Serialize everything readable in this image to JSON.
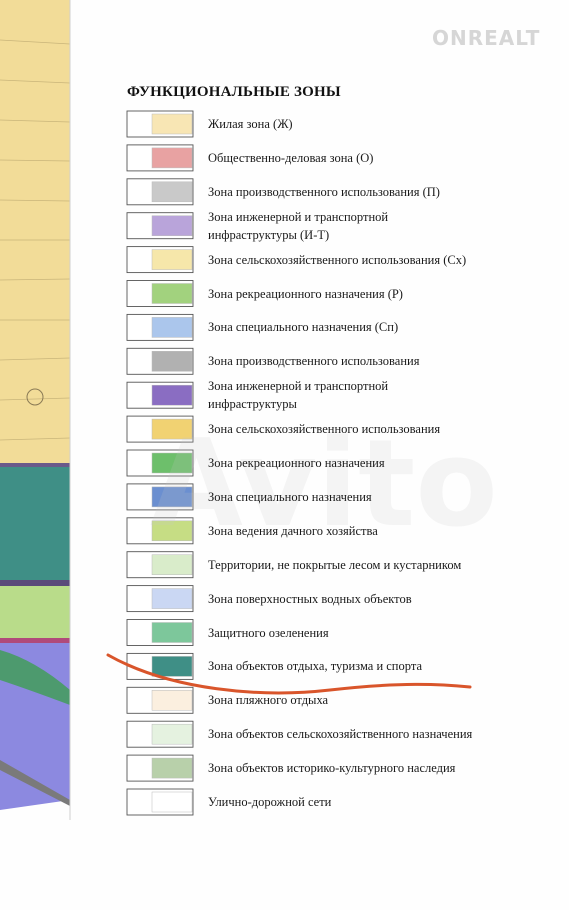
{
  "header": {
    "title": "ФУНКЦИОНАЛЬНЫЕ ЗОНЫ"
  },
  "watermarks": {
    "brand": "ONREALT",
    "avito": "Avito"
  },
  "legend": [
    {
      "lines": [
        "Жилая зона (Ж)"
      ],
      "color": "#f8e6b4"
    },
    {
      "lines": [
        "Общественно-деловая зона (О)"
      ],
      "color": "#e8a2a2"
    },
    {
      "lines": [
        "Зона производственного использования (П)"
      ],
      "color": "#c9c9c9"
    },
    {
      "lines": [
        "Зона инженерной и транспортной",
        "инфраструктуры (И-Т)"
      ],
      "color": "#b9a4da"
    },
    {
      "lines": [
        "Зона сельскохозяйственного использования (Сх)"
      ],
      "color": "#f6e7aa"
    },
    {
      "lines": [
        "Зона рекреационного назначения (Р)"
      ],
      "color": "#a2d27e"
    },
    {
      "lines": [
        "Зона специального назначения (Сп)"
      ],
      "color": "#abc6ec"
    },
    {
      "lines": [
        "Зона производственного использования"
      ],
      "color": "#b1b1b1"
    },
    {
      "lines": [
        "Зона инженерной и транспортной",
        "инфраструктуры"
      ],
      "color": "#8a6dc2"
    },
    {
      "lines": [
        "Зона сельскохозяйственного использования"
      ],
      "color": "#f1d272"
    },
    {
      "lines": [
        "Зона рекреационного назначения"
      ],
      "color": "#6dbf6b"
    },
    {
      "lines": [
        "Зона специального назначения"
      ],
      "color": "#6b8fd0"
    },
    {
      "lines": [
        "Зона ведения дачного хозяйства"
      ],
      "color": "#c6dd84"
    },
    {
      "lines": [
        "Территории, не покрытые лесом и кустарником"
      ],
      "color": "#d9ecca"
    },
    {
      "lines": [
        "Зона поверхностных водных объектов"
      ],
      "color": "#cad7f3"
    },
    {
      "lines": [
        "Защитного озеленения"
      ],
      "color": "#7dc79b"
    },
    {
      "lines": [
        "Зона объектов отдыха, туризма и спорта"
      ],
      "color": "#3f8f86"
    },
    {
      "lines": [
        "Зона пляжного отдыха"
      ],
      "color": "#fbefdf"
    },
    {
      "lines": [
        "Зона объектов сельскохозяйственного назначения"
      ],
      "color": "#e5f2e0"
    },
    {
      "lines": [
        "Зона объектов историко-культурного наследия"
      ],
      "color": "#b8d0aa"
    },
    {
      "lines": [
        "Улично-дорожной сети"
      ],
      "color": "#ffffff"
    }
  ]
}
